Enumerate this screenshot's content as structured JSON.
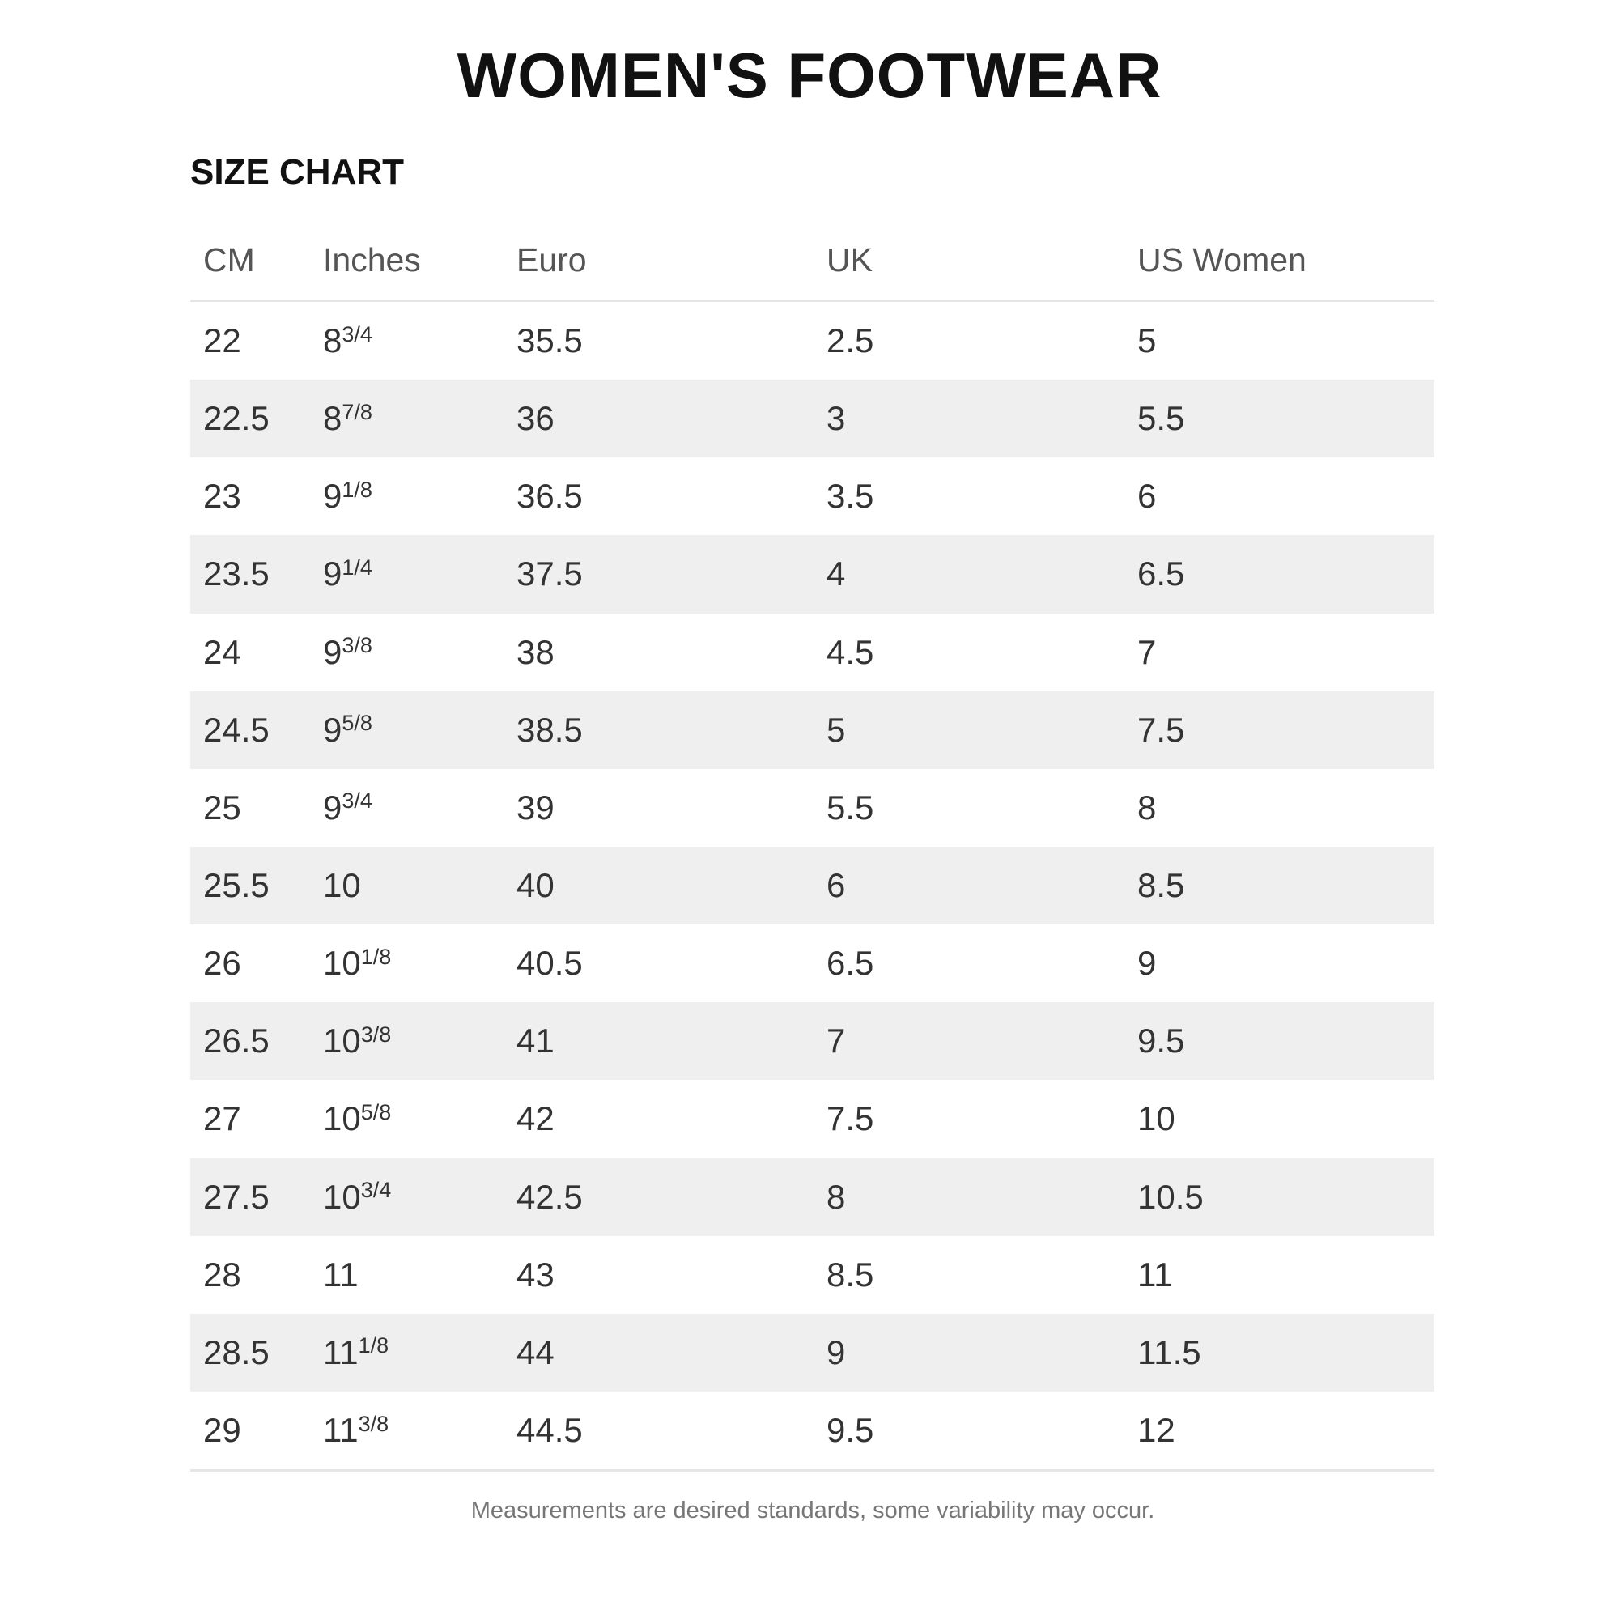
{
  "title": "WOMEN'S FOOTWEAR",
  "subtitle": "SIZE CHART",
  "columns": [
    "CM",
    "Inches",
    "Euro",
    "UK",
    "US Women"
  ],
  "rows": [
    {
      "cm": "22",
      "in_whole": "8",
      "in_frac": "3/4",
      "euro": "35.5",
      "uk": "2.5",
      "us": "5"
    },
    {
      "cm": "22.5",
      "in_whole": "8",
      "in_frac": "7/8",
      "euro": "36",
      "uk": "3",
      "us": "5.5"
    },
    {
      "cm": "23",
      "in_whole": "9",
      "in_frac": "1/8",
      "euro": "36.5",
      "uk": "3.5",
      "us": "6"
    },
    {
      "cm": "23.5",
      "in_whole": "9",
      "in_frac": "1/4",
      "euro": "37.5",
      "uk": "4",
      "us": "6.5"
    },
    {
      "cm": "24",
      "in_whole": "9",
      "in_frac": "3/8",
      "euro": "38",
      "uk": "4.5",
      "us": "7"
    },
    {
      "cm": "24.5",
      "in_whole": "9",
      "in_frac": "5/8",
      "euro": "38.5",
      "uk": "5",
      "us": "7.5"
    },
    {
      "cm": "25",
      "in_whole": "9",
      "in_frac": "3/4",
      "euro": "39",
      "uk": "5.5",
      "us": "8"
    },
    {
      "cm": "25.5",
      "in_whole": "10",
      "in_frac": "",
      "euro": "40",
      "uk": "6",
      "us": "8.5"
    },
    {
      "cm": "26",
      "in_whole": "10",
      "in_frac": "1/8",
      "euro": "40.5",
      "uk": "6.5",
      "us": "9"
    },
    {
      "cm": "26.5",
      "in_whole": "10",
      "in_frac": "3/8",
      "euro": "41",
      "uk": "7",
      "us": "9.5"
    },
    {
      "cm": "27",
      "in_whole": "10",
      "in_frac": "5/8",
      "euro": "42",
      "uk": "7.5",
      "us": "10"
    },
    {
      "cm": "27.5",
      "in_whole": "10",
      "in_frac": "3/4",
      "euro": "42.5",
      "uk": "8",
      "us": "10.5"
    },
    {
      "cm": "28",
      "in_whole": "11",
      "in_frac": "",
      "euro": "43",
      "uk": "8.5",
      "us": "11"
    },
    {
      "cm": "28.5",
      "in_whole": "11",
      "in_frac": "1/8",
      "euro": "44",
      "uk": "9",
      "us": "11.5"
    },
    {
      "cm": "29",
      "in_whole": "11",
      "in_frac": "3/8",
      "euro": "44.5",
      "uk": "9.5",
      "us": "12"
    }
  ],
  "note": "Measurements are desired standards, some variability may occur.",
  "colors": {
    "stripe": "#efefef",
    "text": "#333333",
    "title": "#111111"
  }
}
